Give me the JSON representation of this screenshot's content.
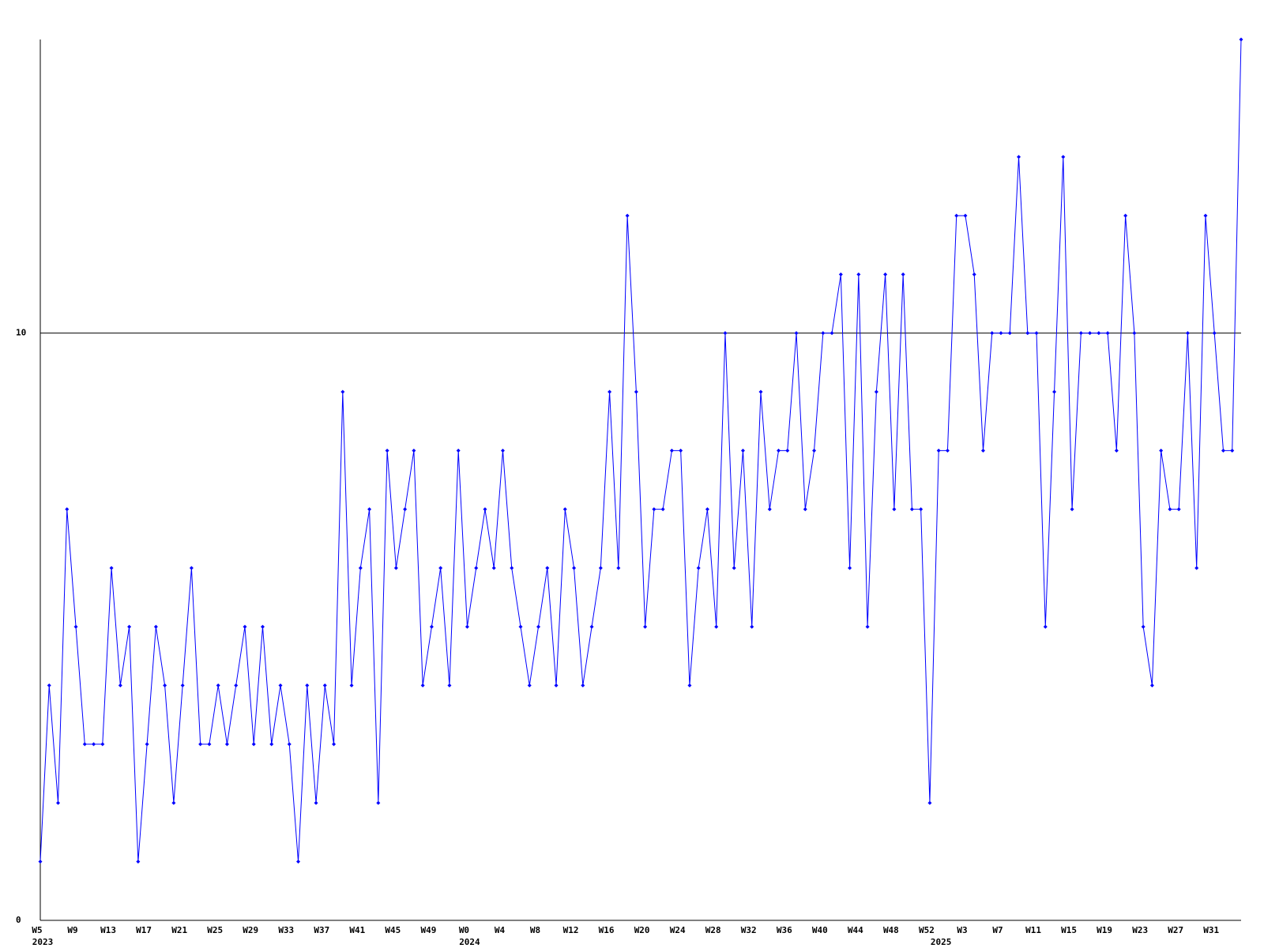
{
  "chart_data": {
    "type": "line",
    "color": "#0000ff",
    "categories": [
      "W5",
      null,
      null,
      null,
      "W9",
      null,
      null,
      null,
      "W13",
      null,
      null,
      null,
      "W17",
      null,
      null,
      null,
      "W21",
      null,
      null,
      null,
      "W25",
      null,
      null,
      null,
      "W29",
      null,
      null,
      null,
      "W33",
      null,
      null,
      null,
      "W37",
      null,
      null,
      null,
      "W41",
      null,
      null,
      null,
      "W45",
      null,
      null,
      null,
      "W49",
      null,
      null,
      null,
      "W0",
      null,
      null,
      null,
      "W4",
      null,
      null,
      null,
      "W8",
      null,
      null,
      null,
      "W12",
      null,
      null,
      null,
      "W16",
      null,
      null,
      null,
      "W20",
      null,
      null,
      null,
      "W24",
      null,
      null,
      null,
      "W28",
      null,
      null,
      null,
      "W32",
      null,
      null,
      null,
      "W36",
      null,
      null,
      null,
      "W40",
      null,
      null,
      null,
      "W44",
      null,
      null,
      null,
      "W48",
      null,
      null,
      null,
      "W52",
      null,
      null,
      null,
      "W3",
      null,
      null,
      null,
      "W7",
      null,
      null,
      null,
      "W11",
      null,
      null,
      null,
      "W15",
      null,
      null,
      null,
      "W19",
      null,
      null,
      null,
      "W23",
      null,
      null,
      null,
      "W27",
      null,
      null,
      null,
      "W31",
      null,
      null,
      null
    ],
    "years": [
      "2023",
      null,
      null,
      null,
      null,
      null,
      null,
      null,
      null,
      null,
      null,
      null,
      null,
      null,
      null,
      null,
      null,
      null,
      null,
      null,
      null,
      null,
      null,
      null,
      null,
      null,
      null,
      null,
      null,
      null,
      null,
      null,
      null,
      null,
      null,
      null,
      null,
      null,
      null,
      null,
      null,
      null,
      null,
      null,
      null,
      null,
      null,
      null,
      "2024",
      null,
      null,
      null,
      null,
      null,
      null,
      null,
      null,
      null,
      null,
      null,
      null,
      null,
      null,
      null,
      null,
      null,
      null,
      null,
      null,
      null,
      null,
      null,
      null,
      null,
      null,
      null,
      null,
      null,
      null,
      null,
      null,
      null,
      null,
      null,
      null,
      null,
      null,
      null,
      null,
      null,
      null,
      null,
      null,
      null,
      null,
      null,
      null,
      null,
      null,
      null,
      null,
      "2025",
      null,
      null,
      null,
      null,
      null,
      null,
      null,
      null,
      null,
      null,
      null,
      null,
      null,
      null,
      null,
      null,
      null,
      null,
      null,
      null,
      null,
      null,
      null,
      null,
      null,
      null,
      null,
      null,
      null,
      null,
      null,
      null,
      null,
      null
    ],
    "values": [
      1,
      4,
      2,
      7,
      5,
      3,
      3,
      3,
      6,
      4,
      5,
      1,
      3,
      5,
      4,
      2,
      4,
      6,
      3,
      3,
      4,
      3,
      4,
      5,
      3,
      5,
      3,
      4,
      3,
      1,
      4,
      2,
      4,
      3,
      9,
      4,
      6,
      7,
      2,
      8,
      6,
      7,
      8,
      4,
      5,
      6,
      4,
      8,
      5,
      6,
      7,
      6,
      8,
      6,
      5,
      4,
      5,
      6,
      4,
      7,
      6,
      4,
      5,
      6,
      9,
      6,
      12,
      9,
      5,
      7,
      7,
      8,
      8,
      4,
      6,
      7,
      5,
      10,
      6,
      8,
      5,
      9,
      7,
      8,
      8,
      10,
      7,
      8,
      10,
      10,
      11,
      6,
      11,
      5,
      9,
      11,
      7,
      11,
      7,
      7,
      2,
      8,
      8,
      12,
      12,
      11,
      8,
      10,
      10,
      10,
      13,
      10,
      10,
      5,
      9,
      13,
      7,
      10,
      10,
      10,
      10,
      8,
      12,
      10,
      5,
      4,
      8,
      7,
      7,
      10,
      6,
      12,
      10,
      8,
      8,
      15
    ],
    "ylim": [
      0,
      15
    ],
    "yticks": [
      0,
      10
    ],
    "grid": true
  }
}
